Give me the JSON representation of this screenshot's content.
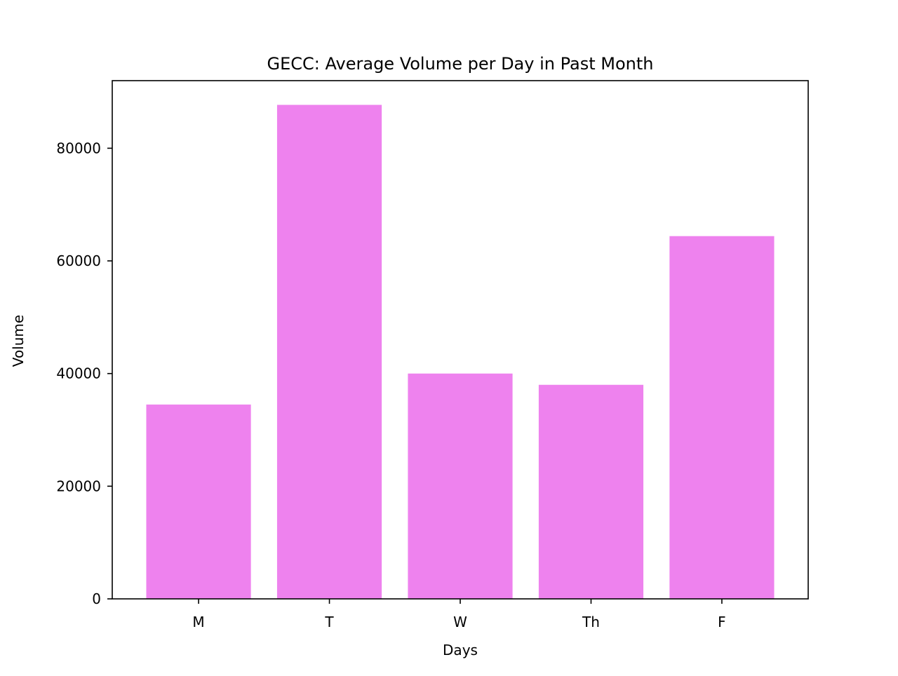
{
  "chart_data": {
    "type": "bar",
    "title": "GECC: Average Volume per Day in Past Month",
    "xlabel": "Days",
    "ylabel": "Volume",
    "categories": [
      "M",
      "T",
      "W",
      "Th",
      "F"
    ],
    "values": [
      34500,
      87700,
      40000,
      38000,
      64400
    ],
    "ylim": [
      0,
      92000
    ],
    "yticks": [
      0,
      20000,
      40000,
      60000,
      80000
    ],
    "bar_color": "#ee82ee",
    "grid": false,
    "legend": "none"
  }
}
